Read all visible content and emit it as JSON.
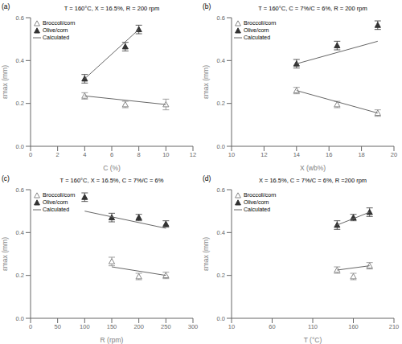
{
  "chart_data": [
    {
      "type": "scatter",
      "title": "T = 160°C, X = 16.5%, R = 200 rpm",
      "annotations": [
        "(a)"
      ],
      "xlabel": "C (%)",
      "ylabel": "εmax (mm)",
      "xlim": [
        0,
        12
      ],
      "xticks": [
        0,
        2,
        4,
        6,
        8,
        10,
        12
      ],
      "ylim": [
        0,
        0.6
      ],
      "yticks": [
        {
          "value": 0,
          "label": "0.0"
        },
        0.2,
        0.4,
        0.6
      ],
      "grid": false,
      "legend": "upper left",
      "series": [
        {
          "name": "Broccoli/corn",
          "color": "#888888",
          "marker": "open triangle",
          "x": [
            4,
            7,
            10
          ],
          "values": [
            0.235,
            0.195,
            0.195
          ],
          "errors": [
            0.015,
            0.015,
            0.025
          ]
        },
        {
          "name": "Olive/corn",
          "color": "#333333",
          "marker": "triangle",
          "x": [
            4,
            7,
            8
          ],
          "values": [
            0.315,
            0.465,
            0.545
          ],
          "errors": [
            0.02,
            0.02,
            0.02
          ]
        },
        {
          "name": "Calculated",
          "type": "line",
          "color": "#666666",
          "x": [
            4,
            10
          ],
          "values": [
            0.235,
            0.195
          ]
        },
        {
          "name": "Calculated",
          "type": "line",
          "color": "#666666",
          "x": [
            4,
            8
          ],
          "values": [
            0.315,
            0.545
          ]
        }
      ]
    },
    {
      "type": "scatter",
      "title": "T = 160°C, C = 7%/C = 6%, R = 200 rpm",
      "annotations": [
        "(b)"
      ],
      "xlabel": "X (wb%)",
      "ylabel": "εmax (mm)",
      "xlim": [
        10,
        20
      ],
      "xticks": [
        10,
        12,
        14,
        16,
        18,
        20
      ],
      "ylim": [
        0,
        0.6
      ],
      "yticks": [
        {
          "value": 0,
          "label": "0.0"
        },
        0.2,
        0.4,
        0.6
      ],
      "grid": false,
      "legend": "upper left",
      "series": [
        {
          "name": "Broccoli/corn",
          "color": "#888888",
          "marker": "open triangle",
          "x": [
            14,
            16.5,
            19
          ],
          "values": [
            0.26,
            0.195,
            0.155
          ],
          "errors": [
            0.015,
            0.015,
            0.015
          ]
        },
        {
          "name": "Olive/corn",
          "color": "#333333",
          "marker": "triangle",
          "x": [
            14,
            16.5,
            19
          ],
          "values": [
            0.385,
            0.47,
            0.565
          ],
          "errors": [
            0.02,
            0.02,
            0.02
          ]
        },
        {
          "name": "Calculated",
          "type": "line",
          "color": "#666666",
          "x": [
            14,
            19
          ],
          "values": [
            0.26,
            0.155
          ]
        },
        {
          "name": "Calculated",
          "type": "line",
          "color": "#666666",
          "x": [
            14,
            19
          ],
          "values": [
            0.385,
            0.49
          ]
        }
      ]
    },
    {
      "type": "scatter",
      "title": "T = 160°C, X = 16.5%, C = 7%/C = 6%",
      "annotations": [
        "(c)"
      ],
      "xlabel": "R (rpm)",
      "ylabel": "εmax (mm)",
      "xlim": [
        0,
        300
      ],
      "xticks": [
        0,
        50,
        100,
        150,
        200,
        250,
        300
      ],
      "ylim": [
        0,
        0.6
      ],
      "yticks": [
        {
          "value": 0,
          "label": "0.0"
        },
        0.2,
        0.4,
        0.6
      ],
      "grid": false,
      "legend": "upper left",
      "series": [
        {
          "name": "Broccoli/corn",
          "color": "#888888",
          "marker": "open triangle",
          "x": [
            150,
            200,
            250
          ],
          "values": [
            0.265,
            0.195,
            0.2
          ],
          "errors": [
            0.02,
            0.015,
            0.015
          ]
        },
        {
          "name": "Olive/corn",
          "color": "#333333",
          "marker": "triangle",
          "x": [
            100,
            150,
            200,
            250
          ],
          "values": [
            0.565,
            0.47,
            0.47,
            0.44
          ],
          "errors": [
            0.02,
            0.02,
            0.015,
            0.015
          ]
        },
        {
          "name": "Calculated",
          "type": "line",
          "color": "#666666",
          "x": [
            150,
            250
          ],
          "values": [
            0.24,
            0.2
          ]
        },
        {
          "name": "Calculated",
          "type": "line",
          "color": "#666666",
          "x": [
            100,
            250
          ],
          "values": [
            0.5,
            0.42
          ]
        }
      ]
    },
    {
      "type": "scatter",
      "title": "X = 16.5%, C = 7%/C = 6%, R =200 rpm",
      "annotations": [
        "(d)"
      ],
      "xlabel": "T (°C)",
      "ylabel": "εmax (mm)",
      "xlim": [
        10,
        210
      ],
      "xticks": [
        10,
        60,
        110,
        160,
        210
      ],
      "ylim": [
        0,
        0.6
      ],
      "yticks": [
        {
          "value": 0,
          "label": "0.0"
        },
        0.2,
        0.4,
        0.6
      ],
      "grid": false,
      "legend": "upper left",
      "series": [
        {
          "name": "Broccoli/corn",
          "color": "#888888",
          "marker": "open triangle",
          "x": [
            140,
            160,
            180
          ],
          "values": [
            0.225,
            0.195,
            0.245
          ],
          "errors": [
            0.015,
            0.015,
            0.015
          ]
        },
        {
          "name": "Olive/corn",
          "color": "#333333",
          "marker": "triangle",
          "x": [
            140,
            160,
            180
          ],
          "values": [
            0.435,
            0.47,
            0.495
          ],
          "errors": [
            0.02,
            0.015,
            0.02
          ]
        },
        {
          "name": "Calculated",
          "type": "line",
          "color": "#666666",
          "x": [
            140,
            180
          ],
          "values": [
            0.225,
            0.245
          ]
        },
        {
          "name": "Calculated",
          "type": "line",
          "color": "#666666",
          "x": [
            140,
            180
          ],
          "values": [
            0.435,
            0.495
          ]
        }
      ]
    }
  ]
}
